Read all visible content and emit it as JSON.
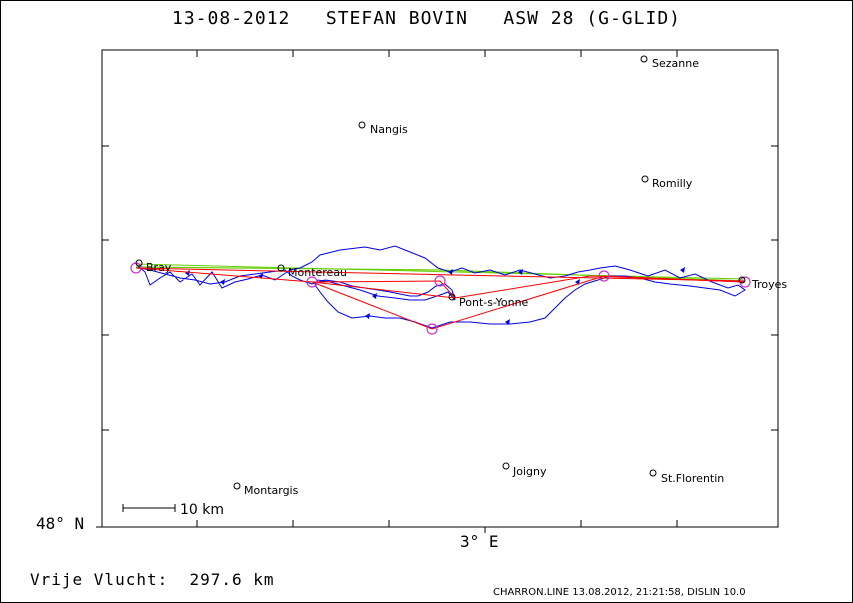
{
  "title": "13-08-2012   STEFAN BOVIN   ASW 28 (G-GLID)",
  "axes": {
    "lat_label": "48° N",
    "lon_label": "3° E"
  },
  "scale_bar": {
    "label": "10 km"
  },
  "footer": {
    "left": "Vrije Vlucht:  297.6 km",
    "right": "CHARRON.LINE 13.08.2012, 21:21:58, DISLIN 10.0"
  },
  "towns": [
    {
      "name": "Sezanne"
    },
    {
      "name": "Nangis"
    },
    {
      "name": "Romilly"
    },
    {
      "name": "Bray"
    },
    {
      "name": "Montereau"
    },
    {
      "name": "Troyes"
    },
    {
      "name": "Pont-s-Yonne"
    },
    {
      "name": "Joigny"
    },
    {
      "name": "St.Florentin"
    },
    {
      "name": "Montargis"
    }
  ],
  "colors": {
    "track": "#0000e6",
    "task": "#ff0000",
    "free_flight": "#66cc00",
    "turnpoint": "#cc33cc",
    "frame": "#000000"
  }
}
